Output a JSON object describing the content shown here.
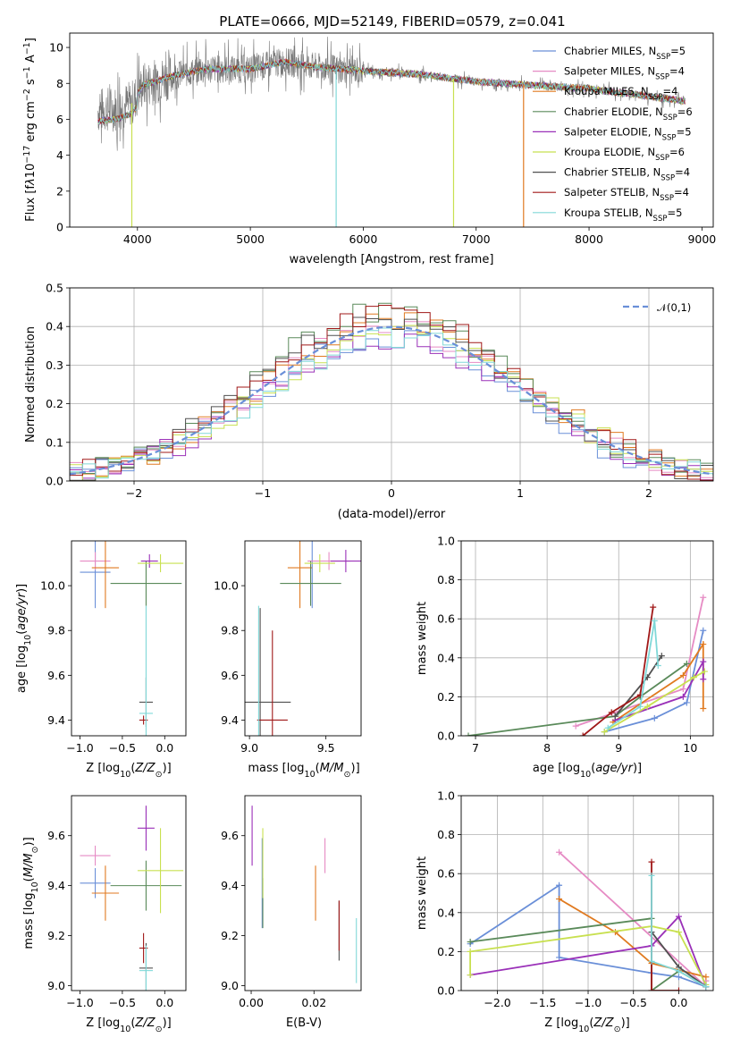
{
  "title": "PLATE=0666, MJD=52149, FIBERID=0579, z=0.041",
  "colors": [
    "#6a8fd8",
    "#e68bc4",
    "#e07a20",
    "#5a8a5a",
    "#9a30b8",
    "#c8e050",
    "#505050",
    "#a01818",
    "#80d8d8"
  ],
  "legend_series": [
    {
      "base": "Chabrier MILES, N",
      "sub": "SSP",
      "tail": "=5"
    },
    {
      "base": "Salpeter MILES, N",
      "sub": "SSP",
      "tail": "=4"
    },
    {
      "base": "Kroupa MILES, N",
      "sub": "SSP",
      "tail": "=4"
    },
    {
      "base": "Chabrier ELODIE, N",
      "sub": "SSP",
      "tail": "=6"
    },
    {
      "base": "Salpeter ELODIE, N",
      "sub": "SSP",
      "tail": "=5"
    },
    {
      "base": "Kroupa ELODIE, N",
      "sub": "SSP",
      "tail": "=6"
    },
    {
      "base": "Chabrier STELIB, N",
      "sub": "SSP",
      "tail": "=4"
    },
    {
      "base": "Salpeter STELIB, N",
      "sub": "SSP",
      "tail": "=4"
    },
    {
      "base": "Kroupa STELIB, N",
      "sub": "SSP",
      "tail": "=5"
    }
  ],
  "chart_data": [
    {
      "id": "spectrum",
      "type": "line",
      "xlabel": "wavelength [Angstrom, rest frame]",
      "ylabel": "Flux [f",
      "xlim": [
        3400,
        9100
      ],
      "ylim": [
        0,
        10.8
      ],
      "xticks": [
        4000,
        5000,
        6000,
        7000,
        8000,
        9000
      ],
      "yticks": [
        0,
        2,
        4,
        6,
        8,
        10
      ],
      "continuum": [
        [
          3650,
          6.5
        ],
        [
          3800,
          6.6
        ],
        [
          3950,
          6.9
        ],
        [
          4050,
          7.9
        ],
        [
          4300,
          8.4
        ],
        [
          4600,
          8.8
        ],
        [
          5000,
          8.8
        ],
        [
          5300,
          9.2
        ],
        [
          5600,
          8.9
        ],
        [
          6000,
          8.7
        ],
        [
          6500,
          8.5
        ],
        [
          7000,
          8.1
        ],
        [
          7500,
          7.9
        ],
        [
          8000,
          7.7
        ],
        [
          8500,
          7.3
        ],
        [
          8850,
          7.0
        ]
      ],
      "dropouts": [
        {
          "x": 3950,
          "y0": 0
        },
        {
          "x": 5760,
          "y0": 0
        },
        {
          "x": 6800,
          "y0": 0
        },
        {
          "x": 7420,
          "y0": 0
        }
      ]
    },
    {
      "id": "residuals",
      "type": "histogram",
      "xlabel": "(data-model)/error",
      "ylabel": "Normed distribution",
      "xlim": [
        -2.5,
        2.5
      ],
      "ylim": [
        0,
        0.5
      ],
      "xticks": [
        -2,
        -1,
        0,
        1,
        2
      ],
      "yticks": [
        0.0,
        0.1,
        0.2,
        0.3,
        0.4,
        0.5
      ],
      "legend": "𝒩(0,1)",
      "grid": true
    },
    {
      "id": "age_vs_Z",
      "type": "errorbar",
      "xlabel": "Z [log",
      "ylabel": "age  [log",
      "xlim": [
        -1.1,
        0.25
      ],
      "ylim": [
        9.33,
        10.2
      ],
      "xticks": [
        -1.0,
        -0.5,
        0.0
      ],
      "yticks": [
        9.4,
        9.6,
        9.8,
        10.0
      ],
      "points": [
        {
          "x": -0.82,
          "y": 10.06,
          "xe": 0.18,
          "ye": 0.16
        },
        {
          "x": -0.82,
          "y": 10.11,
          "xe": 0.18,
          "ye": 0.04
        },
        {
          "x": -0.7,
          "y": 10.08,
          "xe": 0.16,
          "ye": 0.18
        },
        {
          "x": -0.22,
          "y": 10.01,
          "xe": 0.42,
          "ye": 0.1
        },
        {
          "x": -0.18,
          "y": 10.11,
          "xe": 0.1,
          "ye": 0.03
        },
        {
          "x": -0.05,
          "y": 10.1,
          "xe": 0.27,
          "ye": 0.04
        },
        {
          "x": -0.22,
          "y": 9.48,
          "xe": 0.08,
          "ye": 0.11
        },
        {
          "x": -0.25,
          "y": 9.4,
          "xe": 0.05,
          "ye": 0.02
        },
        {
          "x": -0.22,
          "y": 9.43,
          "xe": 0.08,
          "ye": 0.48
        }
      ]
    },
    {
      "id": "age_vs_mass",
      "type": "errorbar",
      "xlabel": "mass [log",
      "ylabel": "",
      "xlim": [
        8.97,
        9.73
      ],
      "ylim": [
        9.33,
        10.2
      ],
      "xticks": [
        9.0,
        9.5
      ],
      "yticks": [
        9.4,
        9.6,
        9.8,
        10.0
      ],
      "points": [
        {
          "x": 9.41,
          "y": 10.06,
          "xe": 0.0,
          "ye": 0.16
        },
        {
          "x": 9.52,
          "y": 10.11,
          "xe": 0.14,
          "ye": 0.04
        },
        {
          "x": 9.33,
          "y": 10.08,
          "xe": 0.08,
          "ye": 0.18
        },
        {
          "x": 9.4,
          "y": 10.01,
          "xe": 0.2,
          "ye": 0.1
        },
        {
          "x": 9.63,
          "y": 10.11,
          "xe": 0.1,
          "ye": 0.05
        },
        {
          "x": 9.46,
          "y": 10.1,
          "xe": 0.1,
          "ye": 0.04
        },
        {
          "x": 9.07,
          "y": 9.48,
          "xe": 0.2,
          "ye": 0.42
        },
        {
          "x": 9.15,
          "y": 9.4,
          "xe": 0.1,
          "ye": 0.4
        },
        {
          "x": 9.06,
          "y": 9.43,
          "xe": 0.0,
          "ye": 0.48
        }
      ]
    },
    {
      "id": "weight_vs_age",
      "type": "line",
      "xlabel": "age  [log",
      "ylabel": "mass weight",
      "xlim": [
        6.8,
        10.32
      ],
      "ylim": [
        0,
        1.0
      ],
      "xticks": [
        7,
        8,
        9,
        10
      ],
      "yticks": [
        0.0,
        0.2,
        0.4,
        0.6,
        0.8,
        1.0
      ],
      "series": [
        [
          [
            8.8,
            0.02
          ],
          [
            9.5,
            0.09
          ],
          [
            9.95,
            0.17
          ],
          [
            10.18,
            0.54
          ]
        ],
        [
          [
            8.4,
            0.05
          ],
          [
            9.9,
            0.24
          ],
          [
            10.18,
            0.71
          ]
        ],
        [
          [
            8.92,
            0.07
          ],
          [
            9.9,
            0.31
          ],
          [
            10.18,
            0.47
          ],
          [
            10.18,
            0.14
          ]
        ],
        [
          [
            6.9,
            0.0
          ],
          [
            8.95,
            0.1
          ],
          [
            9.3,
            0.2
          ],
          [
            9.95,
            0.37
          ]
        ],
        [
          [
            8.95,
            0.08
          ],
          [
            9.9,
            0.2
          ],
          [
            10.18,
            0.38
          ],
          [
            10.18,
            0.29
          ]
        ],
        [
          [
            8.8,
            0.02
          ],
          [
            9.4,
            0.15
          ],
          [
            10.05,
            0.3
          ],
          [
            10.2,
            0.33
          ]
        ],
        [
          [
            8.95,
            0.1
          ],
          [
            9.4,
            0.3
          ],
          [
            9.6,
            0.41
          ]
        ],
        [
          [
            8.5,
            0.0
          ],
          [
            8.9,
            0.12
          ],
          [
            9.3,
            0.21
          ],
          [
            9.48,
            0.66
          ]
        ],
        [
          [
            8.85,
            0.04
          ],
          [
            9.3,
            0.15
          ],
          [
            9.5,
            0.59
          ],
          [
            9.55,
            0.36
          ]
        ]
      ]
    },
    {
      "id": "mass_vs_Z",
      "type": "errorbar",
      "xlabel": "Z [log",
      "ylabel": "mass [log",
      "xlim": [
        -1.1,
        0.25
      ],
      "ylim": [
        8.98,
        9.76
      ],
      "xticks": [
        -1.0,
        -0.5,
        0.0
      ],
      "yticks": [
        9.0,
        9.2,
        9.4,
        9.6
      ],
      "points": [
        {
          "x": -0.82,
          "y": 9.41,
          "xe": 0.18,
          "ye": 0.06
        },
        {
          "x": -0.82,
          "y": 9.52,
          "xe": 0.18,
          "ye": 0.04
        },
        {
          "x": -0.7,
          "y": 9.37,
          "xe": 0.16,
          "ye": 0.11
        },
        {
          "x": -0.22,
          "y": 9.4,
          "xe": 0.42,
          "ye": 0.1
        },
        {
          "x": -0.22,
          "y": 9.63,
          "xe": 0.1,
          "ye": 0.09
        },
        {
          "x": -0.05,
          "y": 9.46,
          "xe": 0.27,
          "ye": 0.17
        },
        {
          "x": -0.22,
          "y": 9.07,
          "xe": 0.08,
          "ye": 0.1
        },
        {
          "x": -0.25,
          "y": 9.15,
          "xe": 0.05,
          "ye": 0.06
        },
        {
          "x": -0.22,
          "y": 9.06,
          "xe": 0.08,
          "ye": 0.1
        }
      ]
    },
    {
      "id": "mass_vs_EBV",
      "type": "errorbar",
      "xlabel": "E(B-V)",
      "ylabel": "",
      "xlim": [
        -0.002,
        0.035
      ],
      "ylim": [
        8.98,
        9.76
      ],
      "xticks": [
        0.0,
        0.02
      ],
      "yticks": [
        9.0,
        9.2,
        9.4,
        9.6
      ],
      "points": [
        {
          "x": 0.0035,
          "y": 9.41,
          "ye": 0.18
        },
        {
          "x": 0.0235,
          "y": 9.52,
          "ye": 0.07
        },
        {
          "x": 0.0205,
          "y": 9.37,
          "ye": 0.11
        },
        {
          "x": 0.0037,
          "y": 9.33,
          "ye": 0.1
        },
        {
          "x": 0.0003,
          "y": 9.6,
          "ye": 0.12
        },
        {
          "x": 0.0037,
          "y": 9.49,
          "ye": 0.14
        },
        {
          "x": 0.028,
          "y": 9.22,
          "ye": 0.12
        },
        {
          "x": 0.028,
          "y": 9.24,
          "ye": 0.1
        },
        {
          "x": 0.0335,
          "y": 9.14,
          "ye": 0.13
        }
      ]
    },
    {
      "id": "weight_vs_Z",
      "type": "line",
      "xlabel": "Z [log",
      "ylabel": "mass weight",
      "xlim": [
        -2.4,
        0.38
      ],
      "ylim": [
        0,
        1.0
      ],
      "xticks": [
        -2.0,
        -1.5,
        -1.0,
        -0.5,
        0.0
      ],
      "yticks": [
        0.0,
        0.2,
        0.4,
        0.6,
        0.8,
        1.0
      ],
      "series": [
        [
          [
            -2.3,
            0.24
          ],
          [
            -1.32,
            0.54
          ],
          [
            -1.32,
            0.17
          ],
          [
            -0.3,
            0.09
          ],
          [
            0.0,
            0.07
          ],
          [
            0.3,
            0.02
          ]
        ],
        [
          [
            -1.32,
            0.71
          ],
          [
            0.3,
            0.02
          ],
          [
            0.3,
            0.05
          ]
        ],
        [
          [
            -1.32,
            0.47
          ],
          [
            -0.7,
            0.3
          ],
          [
            -0.3,
            0.14
          ],
          [
            0.3,
            0.07
          ]
        ],
        [
          [
            -2.3,
            0.25
          ],
          [
            -0.3,
            0.37
          ],
          [
            -0.3,
            0.0
          ],
          [
            0.0,
            0.1
          ],
          [
            0.3,
            0.02
          ]
        ],
        [
          [
            -2.3,
            0.08
          ],
          [
            -0.3,
            0.23
          ],
          [
            0.0,
            0.38
          ],
          [
            0.3,
            0.02
          ]
        ],
        [
          [
            -2.3,
            0.08
          ],
          [
            -2.3,
            0.2
          ],
          [
            -0.3,
            0.33
          ],
          [
            0.0,
            0.3
          ],
          [
            0.3,
            0.03
          ]
        ],
        [
          [
            -0.3,
            0.3
          ],
          [
            0.0,
            0.12
          ],
          [
            0.3,
            0.02
          ]
        ],
        [
          [
            -0.3,
            0.66
          ],
          [
            -0.3,
            0.0
          ],
          [
            0.0,
            0.0
          ]
        ],
        [
          [
            -0.3,
            0.59
          ],
          [
            -0.3,
            0.15
          ],
          [
            0.0,
            0.1
          ],
          [
            0.3,
            0.02
          ]
        ]
      ]
    }
  ]
}
